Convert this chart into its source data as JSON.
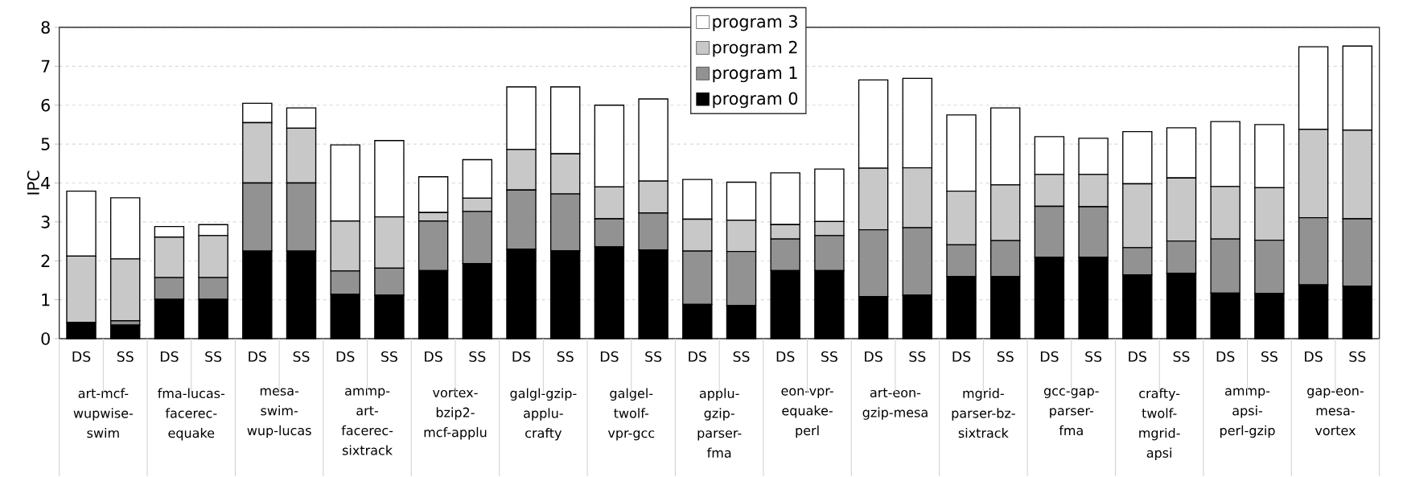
{
  "chart_data": {
    "type": "bar",
    "stacked": true,
    "ylabel": "IPC",
    "categories": [
      "DS",
      "SS",
      "DS",
      "SS",
      "DS",
      "SS",
      "DS",
      "SS",
      "DS",
      "SS",
      "DS",
      "SS",
      "DS",
      "SS",
      "DS",
      "SS",
      "DS",
      "SS",
      "DS",
      "SS",
      "DS",
      "SS",
      "DS",
      "SS",
      "DS",
      "SS",
      "DS",
      "SS",
      "DS",
      "SS"
    ],
    "annotations": [
      "art-mcf-wupwise-swim",
      "fma-lucas-facerec-equake",
      "mesa-swim-wup-lucas",
      "ammp-art-facerec-sixtrack",
      "vortex-bzip2-mcf-applu",
      "galgl-gzip-applu-crafty",
      "galgel-twolf-vpr-gcc",
      "applu-gzip-parser-fma",
      "eon-vpr-equake-perl",
      "art-eon-gzip-mesa",
      "mgrid-parser-bz-sixtrack",
      "gcc-gap-parser-fma",
      "crafty-twolf-mgrid-apsi",
      "ammp-apsi-perl-gzip",
      "gap-eon-mesa-vortex"
    ],
    "series": [
      {
        "name": "program 0",
        "color": "#000000",
        "values": [
          0.42,
          0.35,
          1.01,
          1.01,
          2.25,
          2.25,
          1.14,
          1.12,
          1.75,
          1.93,
          2.3,
          2.26,
          2.36,
          2.28,
          0.88,
          0.85,
          1.75,
          1.75,
          1.08,
          1.12,
          1.6,
          1.6,
          2.09,
          2.09,
          1.64,
          1.68,
          1.17,
          1.16,
          1.38,
          1.35
        ]
      },
      {
        "name": "program 1",
        "color": "#929292",
        "values": [
          0.0,
          0.11,
          0.56,
          0.56,
          1.75,
          1.75,
          0.6,
          0.69,
          1.27,
          1.34,
          1.52,
          1.46,
          0.72,
          0.95,
          1.37,
          1.39,
          0.81,
          0.9,
          1.72,
          1.73,
          0.81,
          0.92,
          1.31,
          1.3,
          0.7,
          0.83,
          1.39,
          1.37,
          1.73,
          1.73
        ]
      },
      {
        "name": "program 2",
        "color": "#c8c8c8",
        "values": [
          1.7,
          1.59,
          1.04,
          1.08,
          1.55,
          1.41,
          1.28,
          1.32,
          0.22,
          0.34,
          1.04,
          1.03,
          0.82,
          0.82,
          0.82,
          0.8,
          0.37,
          0.36,
          1.58,
          1.54,
          1.38,
          1.43,
          0.82,
          0.83,
          1.64,
          1.62,
          1.35,
          1.35,
          2.27,
          2.28
        ]
      },
      {
        "name": "program 3",
        "color": "#ffffff",
        "values": [
          1.67,
          1.57,
          0.27,
          0.28,
          0.5,
          0.52,
          1.96,
          1.96,
          0.92,
          0.99,
          1.61,
          1.72,
          2.1,
          2.11,
          1.02,
          0.98,
          1.33,
          1.35,
          2.27,
          2.3,
          1.96,
          1.98,
          0.97,
          0.93,
          1.34,
          1.29,
          1.67,
          1.62,
          2.12,
          2.16
        ]
      }
    ],
    "ylim": [
      0,
      8
    ],
    "yticks": [
      0,
      1,
      2,
      3,
      4,
      5,
      6,
      7,
      8
    ],
    "grid": "y",
    "legend": "top"
  }
}
